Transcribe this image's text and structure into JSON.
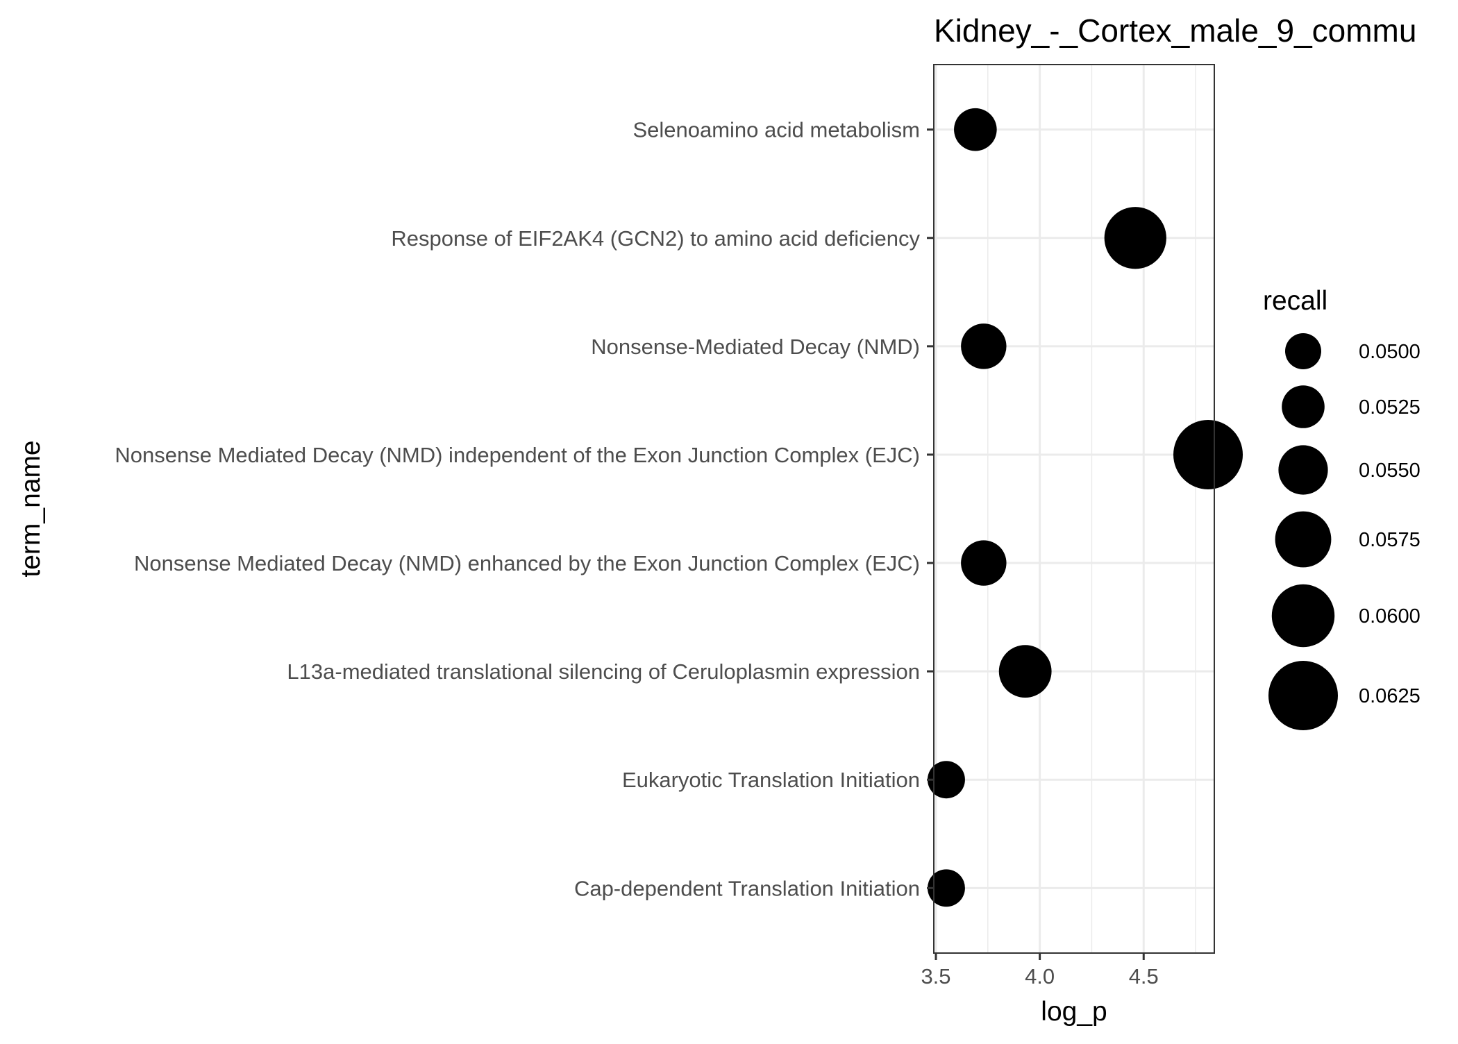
{
  "chart_data": {
    "type": "scatter",
    "title": "Kidney_-_Cortex_male_9_commu",
    "xlabel": "log_p",
    "ylabel": "term_name",
    "xlim": [
      3.49,
      4.84
    ],
    "x_ticks": [
      "3.5",
      "4.0",
      "4.5"
    ],
    "x_tick_values": [
      3.5,
      4.0,
      4.5
    ],
    "grid": true,
    "points": [
      {
        "term": "Selenoamino acid metabolism",
        "log_p": 3.69,
        "recall": 0.0525
      },
      {
        "term": "Response of EIF2AK4 (GCN2) to amino acid deficiency",
        "log_p": 4.46,
        "recall": 0.0597
      },
      {
        "term": "Nonsense-Mediated Decay (NMD)",
        "log_p": 3.73,
        "recall": 0.0535
      },
      {
        "term": "Nonsense Mediated Decay (NMD) independent of the Exon Junction Complex (EJC)",
        "log_p": 4.81,
        "recall": 0.0625
      },
      {
        "term": "Nonsense Mediated Decay (NMD) enhanced by the Exon Junction Complex (EJC)",
        "log_p": 3.73,
        "recall": 0.0535
      },
      {
        "term": "L13a-mediated translational silencing of Ceruloplasmin expression",
        "log_p": 3.93,
        "recall": 0.0562
      },
      {
        "term": "Eukaryotic Translation Initiation",
        "log_p": 3.55,
        "recall": 0.0505
      },
      {
        "term": "Cap-dependent Translation Initiation",
        "log_p": 3.55,
        "recall": 0.0505
      }
    ],
    "legend": {
      "title": "recall",
      "position": "right",
      "entries": [
        {
          "label": "0.0500",
          "value": 0.05
        },
        {
          "label": "0.0525",
          "value": 0.0525
        },
        {
          "label": "0.0550",
          "value": 0.055
        },
        {
          "label": "0.0575",
          "value": 0.0575
        },
        {
          "label": "0.0600",
          "value": 0.06
        },
        {
          "label": "0.0625",
          "value": 0.0625
        }
      ]
    },
    "colors": {
      "point": "#000000",
      "grid": "#ebebeb",
      "panel_border": "#333333",
      "label": "#4d4d4d"
    }
  }
}
